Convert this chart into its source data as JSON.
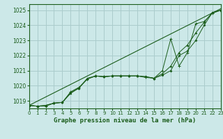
{
  "title": "Graphe pression niveau de la mer (hPa)",
  "background_color": "#cce8e8",
  "grid_color": "#aacccc",
  "line_color": "#1a5c1a",
  "xlim": [
    0,
    23
  ],
  "ylim": [
    1018.5,
    1025.4
  ],
  "yticks": [
    1019,
    1020,
    1021,
    1022,
    1023,
    1024,
    1025
  ],
  "xticks": [
    0,
    1,
    2,
    3,
    4,
    5,
    6,
    7,
    8,
    9,
    10,
    11,
    12,
    13,
    14,
    15,
    16,
    17,
    18,
    19,
    20,
    21,
    22,
    23
  ],
  "series1": [
    1018.7,
    1018.65,
    1018.65,
    1018.85,
    1018.9,
    1019.6,
    1019.9,
    1020.45,
    1020.65,
    1020.6,
    1020.65,
    1020.65,
    1020.65,
    1020.65,
    1020.55,
    1020.5,
    1021.0,
    1023.1,
    1021.3,
    1022.2,
    1024.1,
    1024.25,
    1024.8,
    1025.0
  ],
  "series2": [
    1018.7,
    1018.65,
    1018.7,
    1018.85,
    1018.9,
    1019.5,
    1019.85,
    1020.5,
    1020.65,
    1020.6,
    1020.65,
    1020.65,
    1020.65,
    1020.65,
    1020.6,
    1020.5,
    1020.8,
    1021.3,
    1022.2,
    1022.7,
    1023.5,
    1024.2,
    1024.85,
    1025.0
  ],
  "series3": [
    1018.7,
    1018.65,
    1018.7,
    1018.85,
    1018.9,
    1019.55,
    1019.85,
    1020.45,
    1020.65,
    1020.6,
    1020.65,
    1020.65,
    1020.65,
    1020.65,
    1020.6,
    1020.5,
    1020.7,
    1021.0,
    1022.0,
    1022.3,
    1023.0,
    1024.0,
    1024.85,
    1025.0
  ],
  "trend_x": [
    0,
    23
  ],
  "trend_y": [
    1018.7,
    1025.1
  ]
}
